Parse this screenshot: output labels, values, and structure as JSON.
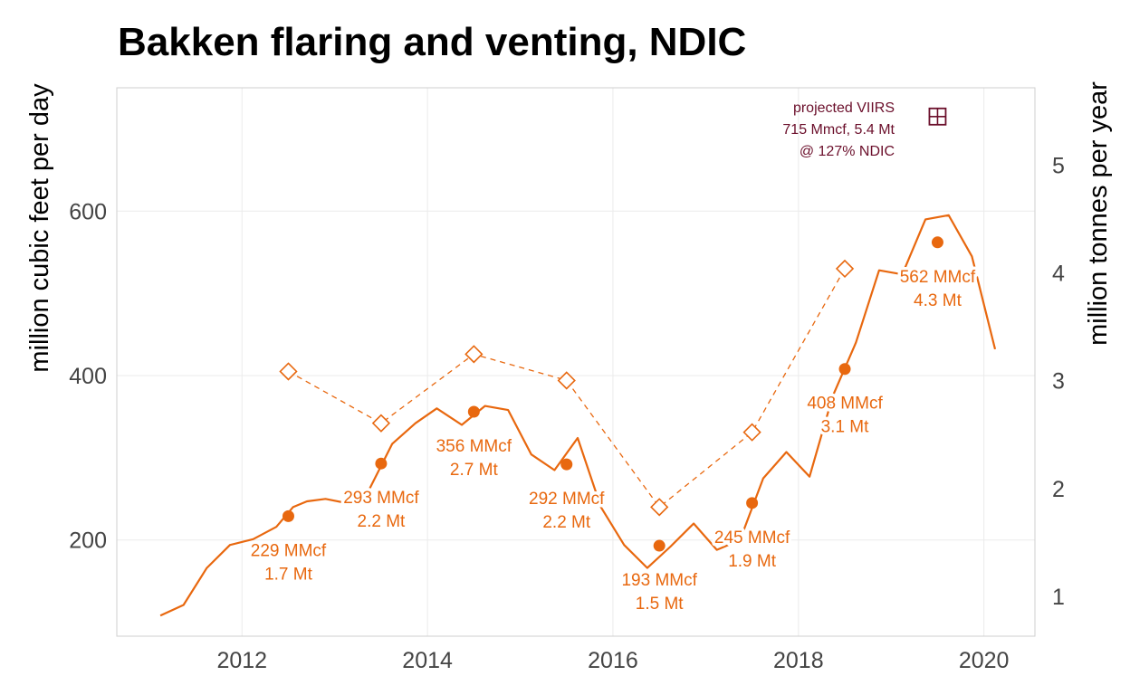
{
  "colors": {
    "primary": "#e8680f",
    "viirs": "#6b0f2b",
    "label_halo": "#ffffff",
    "grid": "#ebebeb",
    "frame": "#cfcfcf",
    "tick_text": "#444444"
  },
  "chart_data": {
    "type": "line",
    "title": "Bakken flaring and venting, NDIC",
    "ylabel_left": "million cubic feet per day",
    "ylabel_right": "million tonnes per year",
    "xlim": [
      2010.65,
      2020.55
    ],
    "ylim_left": [
      83,
      750
    ],
    "ylim_right_note": "secondary axis = 0.00762 × left axis",
    "x_ticks": [
      2012,
      2014,
      2016,
      2018,
      2020
    ],
    "y_ticks_left": [
      200,
      400,
      600
    ],
    "y_ticks_right": [
      1,
      2,
      3,
      4,
      5
    ],
    "grid": true,
    "series": [
      {
        "kind": "monthly-line",
        "x": [
          2011.12,
          2011.37,
          2011.62,
          2011.87,
          2012.12,
          2012.37,
          2012.55,
          2012.7,
          2012.9,
          2013.12,
          2013.37,
          2013.62,
          2013.87,
          2014.1,
          2014.37,
          2014.62,
          2014.87,
          2015.12,
          2015.37,
          2015.62,
          2015.87,
          2016.12,
          2016.37,
          2016.62,
          2016.87,
          2017.12,
          2017.37,
          2017.62,
          2017.87,
          2018.12,
          2018.37,
          2018.62,
          2018.87,
          2019.12,
          2019.37,
          2019.62,
          2019.87,
          2020.12
        ],
        "values": [
          108,
          121,
          166,
          194,
          201,
          216,
          240,
          247,
          250,
          245,
          261,
          317,
          342,
          360,
          340,
          363,
          358,
          304,
          285,
          324,
          240,
          194,
          166,
          192,
          220,
          188,
          200,
          275,
          307,
          277,
          375,
          440,
          528,
          523,
          590,
          595,
          545,
          432
        ]
      },
      {
        "kind": "annual-average",
        "x": [
          2012.5,
          2013.5,
          2014.5,
          2015.5,
          2016.5,
          2017.5,
          2018.5,
          2019.5
        ],
        "values": [
          229,
          293,
          356,
          292,
          193,
          245,
          408,
          562
        ],
        "labels": [
          [
            "229 MMcf",
            "1.7 Mt"
          ],
          [
            "293 MMcf",
            "2.2 Mt"
          ],
          [
            "356 MMcf",
            "2.7 Mt"
          ],
          [
            "292 MMcf",
            "2.2 Mt"
          ],
          [
            "193 MMcf",
            "1.5 Mt"
          ],
          [
            "245 MMcf",
            "1.9 Mt"
          ],
          [
            "408 MMcf",
            "3.1 Mt"
          ],
          [
            "562 MMcf",
            "4.3 Mt"
          ]
        ]
      },
      {
        "kind": "dashed-diamonds",
        "x": [
          2012.5,
          2013.5,
          2014.5,
          2015.5,
          2016.5,
          2017.5,
          2018.5
        ],
        "values": [
          405,
          342,
          426,
          394,
          240,
          331,
          530
        ]
      }
    ],
    "annotation": {
      "x": 2019.5,
      "value": 715,
      "lines": [
        "projected VIIRS",
        "715 Mmcf, 5.4 Mt",
        "@ 127% NDIC"
      ]
    }
  }
}
